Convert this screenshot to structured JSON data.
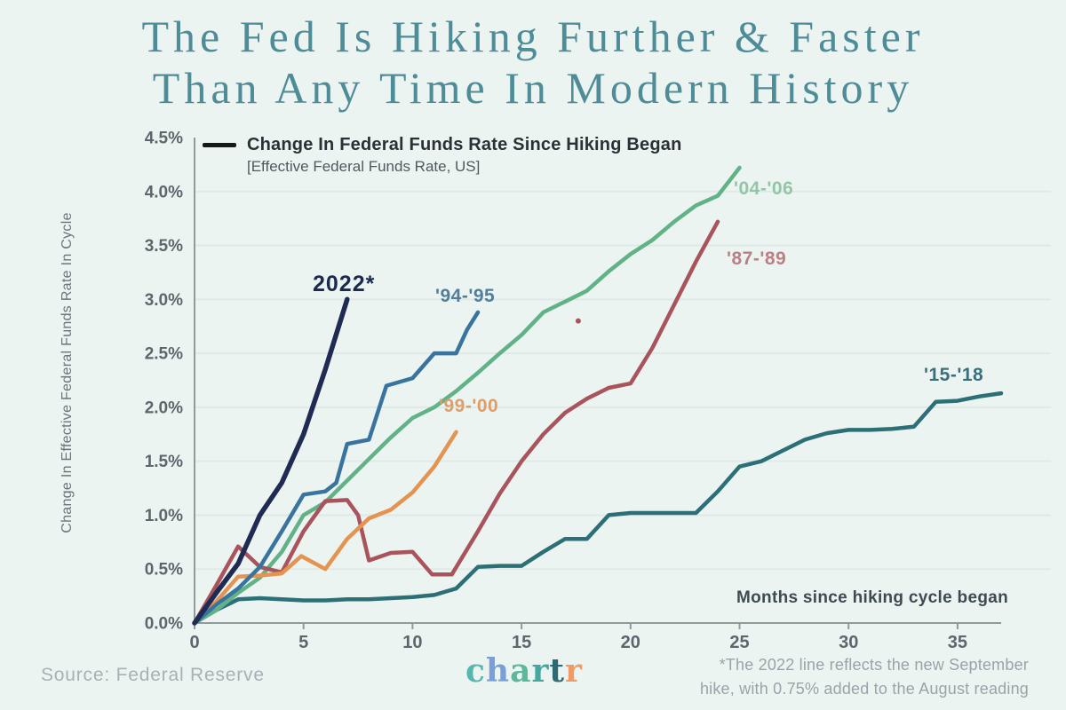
{
  "title": {
    "line1": "The Fed Is Hiking Further & Faster",
    "line2": "Than Any Time In Modern History"
  },
  "legend": {
    "label": "Change In Federal Funds Rate Since Hiking Began",
    "sublabel": "[Effective Federal Funds Rate, US]",
    "swatch_color": "#15181a"
  },
  "footer": {
    "source": "Source: Federal Reserve",
    "note_line1": "*The 2022 line reflects the new September",
    "note_line2": "hike, with 0.75% added to the August reading",
    "logo": {
      "letters": [
        {
          "ch": "c",
          "color": "#56b7ae"
        },
        {
          "ch": "h",
          "color": "#7a9fd4"
        },
        {
          "ch": "a",
          "color": "#5cb79b"
        },
        {
          "ch": "r",
          "color": "#45a79e"
        },
        {
          "ch": "t",
          "color": "#2d6b74"
        },
        {
          "ch": "r",
          "color": "#f09a68"
        }
      ]
    }
  },
  "chart_data": {
    "type": "line",
    "title": "Change In Federal Funds Rate Since Hiking Began",
    "subtitle": "[Effective Federal Funds Rate, US]",
    "xlabel": "Months since hiking cycle began",
    "ylabel": "Change In Effective Federal Funds Rate In Cycle",
    "xlim": [
      0,
      37
    ],
    "ylim": [
      0,
      4.5
    ],
    "grid_values": [
      0.5,
      1.0,
      1.5,
      2.0,
      2.5,
      3.0,
      3.5,
      4.0
    ],
    "x_ticks": [
      {
        "value": 0,
        "label": "0"
      },
      {
        "value": 5,
        "label": "5"
      },
      {
        "value": 10,
        "label": "10"
      },
      {
        "value": 15,
        "label": "15"
      },
      {
        "value": 20,
        "label": "20"
      },
      {
        "value": 25,
        "label": "25"
      },
      {
        "value": 30,
        "label": "30"
      },
      {
        "value": 35,
        "label": "35"
      }
    ],
    "y_ticks": [
      {
        "value": 0.0,
        "label": "0.0%"
      },
      {
        "value": 0.5,
        "label": "0.5%"
      },
      {
        "value": 1.0,
        "label": "1.0%"
      },
      {
        "value": 1.5,
        "label": "1.5%"
      },
      {
        "value": 2.0,
        "label": "2.0%"
      },
      {
        "value": 2.5,
        "label": "2.5%"
      },
      {
        "value": 3.0,
        "label": "3.0%"
      },
      {
        "value": 3.5,
        "label": "3.5%"
      },
      {
        "value": 4.0,
        "label": "4.0%"
      },
      {
        "value": 4.5,
        "label": "4.5%"
      }
    ],
    "series": [
      {
        "name": "2015-2018 hiking cycle",
        "label": "'15-'18",
        "color": "#2c6f76",
        "label_color": "#39707c",
        "width": 4.5,
        "points": [
          [
            0,
            0
          ],
          [
            1,
            0.12
          ],
          [
            2,
            0.22
          ],
          [
            3,
            0.23
          ],
          [
            4,
            0.22
          ],
          [
            5,
            0.21
          ],
          [
            6,
            0.21
          ],
          [
            7,
            0.22
          ],
          [
            8,
            0.22
          ],
          [
            9,
            0.23
          ],
          [
            10,
            0.24
          ],
          [
            11,
            0.26
          ],
          [
            12,
            0.32
          ],
          [
            13,
            0.52
          ],
          [
            14,
            0.53
          ],
          [
            15,
            0.53
          ],
          [
            16,
            0.66
          ],
          [
            17,
            0.78
          ],
          [
            18,
            0.78
          ],
          [
            19,
            1.0
          ],
          [
            20,
            1.02
          ],
          [
            21,
            1.02
          ],
          [
            22,
            1.02
          ],
          [
            23,
            1.02
          ],
          [
            24,
            1.22
          ],
          [
            25,
            1.45
          ],
          [
            26,
            1.5
          ],
          [
            27,
            1.6
          ],
          [
            28,
            1.7
          ],
          [
            29,
            1.76
          ],
          [
            30,
            1.79
          ],
          [
            31,
            1.79
          ],
          [
            32,
            1.8
          ],
          [
            33,
            1.82
          ],
          [
            34,
            2.05
          ],
          [
            35,
            2.06
          ],
          [
            36,
            2.1
          ],
          [
            37,
            2.13
          ]
        ]
      },
      {
        "name": "2004-2006 hiking cycle",
        "label": "'04-'06",
        "color": "#62b287",
        "label_color": "#93c5a8",
        "width": 4.5,
        "points": [
          [
            0,
            0
          ],
          [
            1,
            0.12
          ],
          [
            2,
            0.28
          ],
          [
            3,
            0.42
          ],
          [
            4,
            0.66
          ],
          [
            5,
            1.0
          ],
          [
            6,
            1.12
          ],
          [
            7,
            1.32
          ],
          [
            8,
            1.52
          ],
          [
            9,
            1.72
          ],
          [
            10,
            1.9
          ],
          [
            11,
            2.0
          ],
          [
            12,
            2.15
          ],
          [
            13,
            2.32
          ],
          [
            14,
            2.5
          ],
          [
            15,
            2.67
          ],
          [
            16,
            2.88
          ],
          [
            17,
            2.98
          ],
          [
            18,
            3.08
          ],
          [
            19,
            3.26
          ],
          [
            20,
            3.42
          ],
          [
            21,
            3.55
          ],
          [
            22,
            3.72
          ],
          [
            23,
            3.87
          ],
          [
            24,
            3.96
          ],
          [
            25,
            4.22
          ]
        ]
      },
      {
        "name": "1987-1989 hiking cycle",
        "label": "'87-'89",
        "color": "#a9545c",
        "label_color": "#bb7f84",
        "width": 4.5,
        "points": [
          [
            0,
            0
          ],
          [
            1,
            0.35
          ],
          [
            2,
            0.71
          ],
          [
            3,
            0.52
          ],
          [
            4,
            0.47
          ],
          [
            5,
            0.85
          ],
          [
            6,
            1.13
          ],
          [
            7,
            1.14
          ],
          [
            7.5,
            1.0
          ],
          [
            8,
            0.58
          ],
          [
            9,
            0.65
          ],
          [
            10,
            0.66
          ],
          [
            10.9,
            0.45
          ],
          [
            11.8,
            0.45
          ],
          [
            13,
            0.85
          ],
          [
            14,
            1.2
          ],
          [
            15,
            1.5
          ],
          [
            16,
            1.75
          ],
          [
            17,
            1.95
          ],
          [
            18,
            2.08
          ],
          [
            19,
            2.18
          ],
          [
            20,
            2.22
          ],
          [
            21,
            2.55
          ],
          [
            22,
            2.95
          ],
          [
            23,
            3.35
          ],
          [
            24,
            3.72
          ]
        ]
      },
      {
        "name": "1999-2000 hiking cycle",
        "label": "'99-'00",
        "color": "#e59350",
        "label_color": "#dd9e6a",
        "width": 4.5,
        "points": [
          [
            0,
            0
          ],
          [
            1,
            0.2
          ],
          [
            2,
            0.43
          ],
          [
            3,
            0.44
          ],
          [
            4,
            0.46
          ],
          [
            4.9,
            0.62
          ],
          [
            6,
            0.5
          ],
          [
            7,
            0.78
          ],
          [
            8,
            0.97
          ],
          [
            9,
            1.05
          ],
          [
            10,
            1.21
          ],
          [
            11,
            1.45
          ],
          [
            12,
            1.77
          ]
        ]
      },
      {
        "name": "1994-1995 hiking cycle",
        "label": "'94-'95",
        "color": "#39749e",
        "label_color": "#527e9b",
        "width": 4.5,
        "points": [
          [
            0,
            0
          ],
          [
            1,
            0.17
          ],
          [
            2,
            0.32
          ],
          [
            3,
            0.52
          ],
          [
            4,
            0.85
          ],
          [
            5,
            1.19
          ],
          [
            6,
            1.22
          ],
          [
            6.5,
            1.3
          ],
          [
            7,
            1.66
          ],
          [
            8,
            1.7
          ],
          [
            8.8,
            2.2
          ],
          [
            10,
            2.27
          ],
          [
            11,
            2.5
          ],
          [
            12,
            2.5
          ],
          [
            12.5,
            2.72
          ],
          [
            13,
            2.88
          ]
        ]
      },
      {
        "name": "2022 hiking cycle",
        "label": "2022*",
        "color": "#1f2b52",
        "label_color": "#1d2a50",
        "width": 5.5,
        "points": [
          [
            0,
            0
          ],
          [
            1,
            0.28
          ],
          [
            2,
            0.55
          ],
          [
            3,
            1.0
          ],
          [
            4,
            1.3
          ],
          [
            5,
            1.75
          ],
          [
            6,
            2.35
          ],
          [
            7,
            3.0
          ]
        ]
      }
    ],
    "stray_point": {
      "x": 17.6,
      "y": 2.8
    },
    "legend_position": "top-left inside plot",
    "grid": true,
    "axis_color": "#8f9b9b",
    "grid_color": "#dfe9e6",
    "tick_label_color": "#5c666d"
  }
}
